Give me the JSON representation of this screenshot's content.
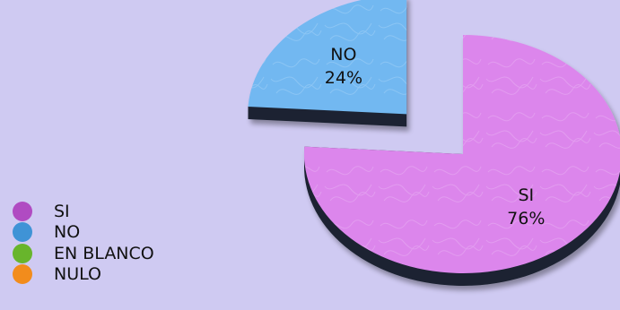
{
  "chart_data": {
    "type": "pie",
    "title": "",
    "categories": [
      "SI",
      "NO",
      "EN BLANCO",
      "NULO"
    ],
    "values": [
      76,
      24,
      0,
      0
    ],
    "slice_labels": [
      {
        "category": "SI",
        "percent": "76%"
      },
      {
        "category": "NO",
        "percent": "24%"
      }
    ],
    "colors": [
      "#b04bc2",
      "#3f93d6",
      "#68b52c",
      "#f28c1c"
    ],
    "top_colors": [
      "#dc86ec",
      "#72b8f1",
      "#8fd85a",
      "#ffb25a"
    ],
    "exploded": [
      "NO"
    ],
    "three_d": true,
    "legend_position": "bottom-left"
  }
}
